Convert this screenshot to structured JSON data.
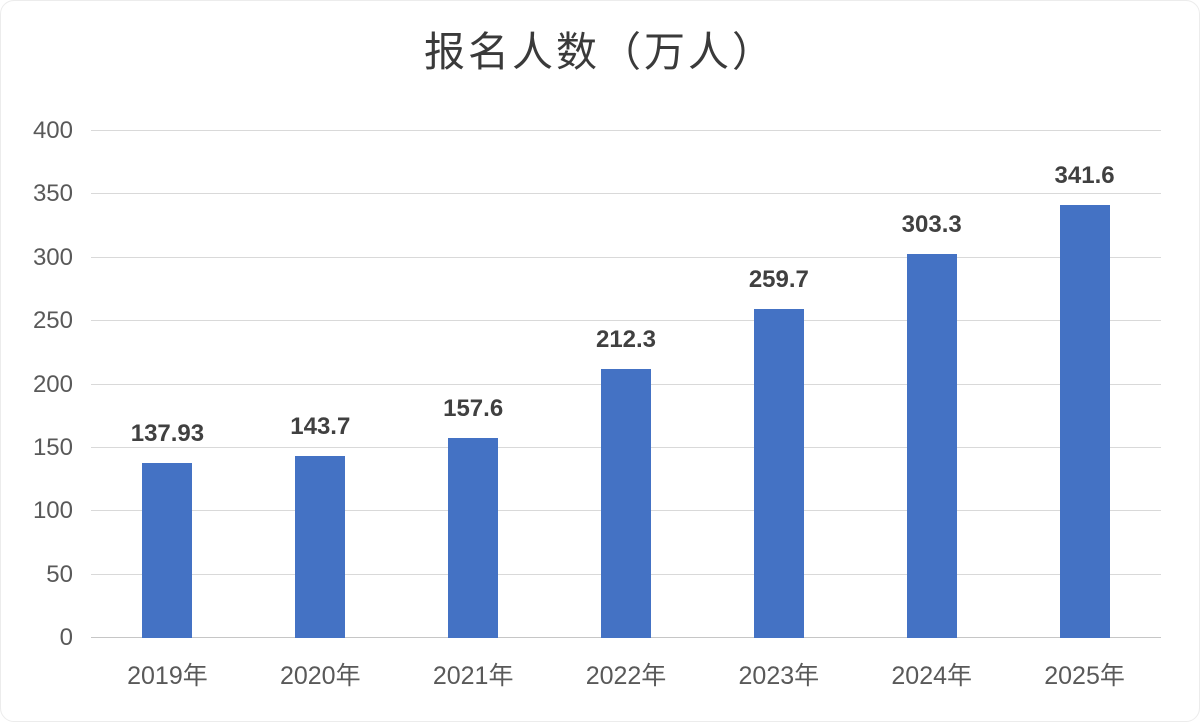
{
  "chart_data": {
    "type": "bar",
    "title": "报名人数（万人）",
    "categories": [
      "2019年",
      "2020年",
      "2021年",
      "2022年",
      "2023年",
      "2024年",
      "2025年"
    ],
    "values": [
      137.93,
      143.7,
      157.6,
      212.3,
      259.7,
      303.3,
      341.6
    ],
    "value_labels": [
      "137.93",
      "143.7",
      "157.6",
      "212.3",
      "259.7",
      "303.3",
      "341.6"
    ],
    "xlabel": "",
    "ylabel": "",
    "ylim": [
      0,
      400
    ],
    "yticks": [
      0,
      50,
      100,
      150,
      200,
      250,
      300,
      350,
      400
    ],
    "grid": true,
    "legend_position": "none",
    "colors": {
      "bar": "#4472C4",
      "gridline": "#d9d9d9",
      "axis_label": "#595959",
      "data_label": "#404040",
      "title": "#3a3a3a",
      "background": "#ffffff"
    }
  }
}
